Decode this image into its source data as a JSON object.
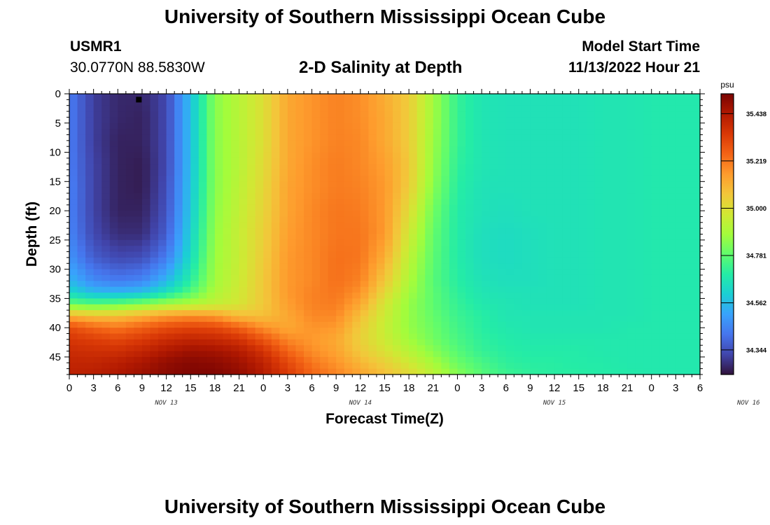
{
  "header": {
    "title": "University of Southern Mississippi Ocean Cube",
    "station": "USMR1",
    "coords": "30.0770N  88.5830W",
    "plot_title": "2-D Salinity at Depth",
    "model_start_label": "Model Start Time",
    "model_start_value": "11/13/2022 Hour 21"
  },
  "footer": {
    "title": "University of Southern Mississippi Ocean Cube"
  },
  "chart_data": {
    "type": "heatmap",
    "title": "2-D Salinity at Depth",
    "xlabel": "Forecast Time(Z)",
    "ylabel": "Depth (ft)",
    "x_range_hours_since_nov13_00z": [
      0,
      78
    ],
    "x_tick_labels": [
      "0",
      "3",
      "6",
      "9",
      "12",
      "15",
      "18",
      "21",
      "0",
      "3",
      "6",
      "9",
      "12",
      "15",
      "18",
      "21",
      "0",
      "3",
      "6",
      "9",
      "12",
      "15",
      "18",
      "21",
      "0",
      "3",
      "6"
    ],
    "date_labels": [
      "NOV 13",
      "NOV 14",
      "NOV 15",
      "NOV 16"
    ],
    "ylim": [
      0,
      48
    ],
    "y_ticks": [
      0,
      5,
      10,
      15,
      20,
      25,
      30,
      35,
      40,
      45
    ],
    "y_tick_labels": [
      "0",
      "5",
      "10",
      "15",
      "20",
      "25",
      "30",
      "35",
      "40",
      "45"
    ],
    "y_reversed": true,
    "colorbar": {
      "unit": "psu",
      "range": [
        34.23,
        35.53
      ],
      "ticks": [
        34.344,
        34.562,
        34.781,
        35.0,
        35.219,
        35.438
      ],
      "tick_labels": [
        "34.344",
        "34.562",
        "34.781",
        "35.000",
        "35.219",
        "35.438"
      ],
      "colors": [
        "#30123b",
        "#4145ab",
        "#4675ed",
        "#39a2fc",
        "#1bcfd4",
        "#24eca6",
        "#61fc6c",
        "#a4fc3b",
        "#d1e834",
        "#f3c63a",
        "#fe9b2d",
        "#f36315",
        "#d93806",
        "#b11901",
        "#7a0402"
      ]
    },
    "grid_x_hours": [
      0,
      3,
      6,
      9,
      12,
      15,
      18,
      21,
      24,
      27,
      30,
      33,
      36,
      39,
      42,
      45,
      48,
      51,
      54,
      57,
      60,
      63,
      66,
      69,
      72,
      75,
      78
    ],
    "grid_depth_ft": [
      0,
      4,
      8,
      12,
      16,
      20,
      24,
      28,
      32,
      34,
      36,
      38,
      40,
      42,
      44,
      46,
      48
    ],
    "values_psu": [
      [
        34.43,
        34.31,
        34.27,
        34.27,
        34.33,
        34.57,
        34.84,
        34.92,
        35.0,
        35.13,
        35.17,
        35.2,
        35.18,
        35.12,
        35.05,
        34.88,
        34.72,
        34.67,
        34.66,
        34.66,
        34.66,
        34.66,
        34.67,
        34.67,
        34.68,
        34.68,
        34.68
      ],
      [
        34.43,
        34.31,
        34.27,
        34.26,
        34.33,
        34.57,
        34.84,
        34.92,
        35.0,
        35.13,
        35.17,
        35.2,
        35.18,
        35.13,
        35.05,
        34.88,
        34.72,
        34.67,
        34.66,
        34.66,
        34.66,
        34.66,
        34.67,
        34.67,
        34.68,
        34.68,
        34.68
      ],
      [
        34.43,
        34.31,
        34.26,
        34.26,
        34.33,
        34.57,
        34.84,
        34.92,
        35.0,
        35.13,
        35.17,
        35.2,
        35.19,
        35.13,
        35.05,
        34.87,
        34.72,
        34.67,
        34.66,
        34.66,
        34.66,
        34.66,
        34.67,
        34.67,
        34.68,
        34.68,
        34.68
      ],
      [
        34.43,
        34.32,
        34.26,
        34.25,
        34.33,
        34.57,
        34.84,
        34.92,
        35.01,
        35.13,
        35.18,
        35.21,
        35.19,
        35.15,
        35.06,
        34.86,
        34.71,
        34.67,
        34.66,
        34.66,
        34.66,
        34.66,
        34.67,
        34.67,
        34.68,
        34.68,
        34.68
      ],
      [
        34.44,
        34.32,
        34.26,
        34.25,
        34.34,
        34.58,
        34.84,
        34.93,
        35.02,
        35.14,
        35.18,
        35.21,
        35.2,
        35.16,
        35.05,
        34.84,
        34.7,
        34.66,
        34.66,
        34.66,
        34.66,
        34.66,
        34.67,
        34.67,
        34.68,
        34.68,
        34.68
      ],
      [
        34.44,
        34.32,
        34.26,
        34.26,
        34.35,
        34.59,
        34.85,
        34.94,
        35.03,
        35.14,
        35.19,
        35.22,
        35.21,
        35.16,
        35.01,
        34.81,
        34.69,
        34.66,
        34.65,
        34.66,
        34.66,
        34.66,
        34.67,
        34.67,
        34.68,
        34.68,
        34.68
      ],
      [
        34.45,
        34.33,
        34.28,
        34.28,
        34.37,
        34.61,
        34.86,
        34.95,
        35.04,
        35.15,
        35.19,
        35.22,
        35.22,
        35.16,
        34.97,
        34.79,
        34.69,
        34.65,
        34.64,
        34.65,
        34.66,
        34.66,
        34.67,
        34.67,
        34.68,
        34.68,
        34.68
      ],
      [
        34.48,
        34.37,
        34.33,
        34.34,
        34.43,
        34.64,
        34.87,
        34.95,
        35.05,
        35.16,
        35.19,
        35.23,
        35.22,
        35.12,
        34.93,
        34.78,
        34.69,
        34.65,
        34.64,
        34.65,
        34.66,
        34.66,
        34.67,
        34.67,
        34.68,
        34.68,
        34.68
      ],
      [
        34.55,
        34.46,
        34.43,
        34.45,
        34.55,
        34.7,
        34.88,
        34.96,
        35.06,
        35.16,
        35.19,
        35.23,
        35.2,
        35.06,
        34.9,
        34.77,
        34.7,
        34.66,
        34.65,
        34.65,
        34.66,
        34.66,
        34.67,
        34.67,
        34.68,
        34.68,
        34.68
      ],
      [
        34.63,
        34.56,
        34.55,
        34.57,
        34.66,
        34.77,
        34.9,
        34.97,
        35.06,
        35.16,
        35.2,
        35.22,
        35.17,
        35.02,
        34.88,
        34.78,
        34.71,
        34.67,
        34.66,
        34.66,
        34.66,
        34.66,
        34.67,
        34.67,
        34.68,
        34.68,
        34.68
      ],
      [
        34.8,
        34.78,
        34.8,
        34.84,
        34.89,
        34.91,
        34.94,
        34.98,
        35.06,
        35.15,
        35.2,
        35.21,
        35.13,
        34.98,
        34.86,
        34.78,
        34.72,
        34.68,
        34.67,
        34.66,
        34.66,
        34.66,
        34.67,
        34.67,
        34.68,
        34.68,
        34.68
      ],
      [
        35.12,
        35.08,
        35.08,
        35.12,
        35.16,
        35.18,
        35.16,
        35.09,
        35.08,
        35.13,
        35.19,
        35.19,
        35.08,
        34.96,
        34.86,
        34.79,
        34.73,
        34.7,
        34.67,
        34.67,
        34.67,
        34.67,
        34.67,
        34.67,
        34.68,
        34.68,
        34.68
      ],
      [
        35.3,
        35.25,
        35.22,
        35.26,
        35.3,
        35.32,
        35.31,
        35.26,
        35.18,
        35.13,
        35.17,
        35.16,
        35.05,
        34.95,
        34.86,
        34.8,
        34.74,
        34.7,
        34.68,
        34.67,
        34.67,
        34.67,
        34.67,
        34.68,
        34.68,
        34.68,
        34.68
      ],
      [
        35.35,
        35.33,
        35.31,
        35.34,
        35.38,
        35.4,
        35.39,
        35.36,
        35.28,
        35.19,
        35.16,
        35.13,
        35.04,
        34.96,
        34.88,
        34.81,
        34.75,
        34.71,
        34.69,
        34.68,
        34.68,
        34.68,
        34.68,
        34.68,
        34.68,
        34.68,
        34.68
      ],
      [
        35.38,
        35.37,
        35.37,
        35.4,
        35.44,
        35.47,
        35.46,
        35.43,
        35.36,
        35.25,
        35.18,
        35.14,
        35.06,
        34.99,
        34.92,
        34.84,
        34.77,
        34.72,
        34.7,
        34.69,
        34.69,
        34.69,
        34.68,
        34.68,
        34.68,
        34.68,
        34.68
      ],
      [
        35.4,
        35.4,
        35.42,
        35.45,
        35.49,
        35.51,
        35.5,
        35.47,
        35.41,
        35.31,
        35.22,
        35.17,
        35.1,
        35.04,
        34.97,
        34.89,
        34.8,
        34.75,
        34.71,
        34.7,
        34.7,
        34.69,
        34.69,
        34.68,
        34.68,
        34.68,
        34.68
      ],
      [
        35.41,
        35.42,
        35.44,
        35.47,
        35.5,
        35.52,
        35.52,
        35.49,
        35.43,
        35.34,
        35.25,
        35.2,
        35.14,
        35.08,
        35.02,
        34.93,
        34.84,
        34.77,
        34.73,
        34.71,
        34.7,
        34.7,
        34.69,
        34.69,
        34.68,
        34.68,
        34.68
      ]
    ],
    "marker": {
      "x_hours": 8.6,
      "depth_ft": 1
    }
  }
}
